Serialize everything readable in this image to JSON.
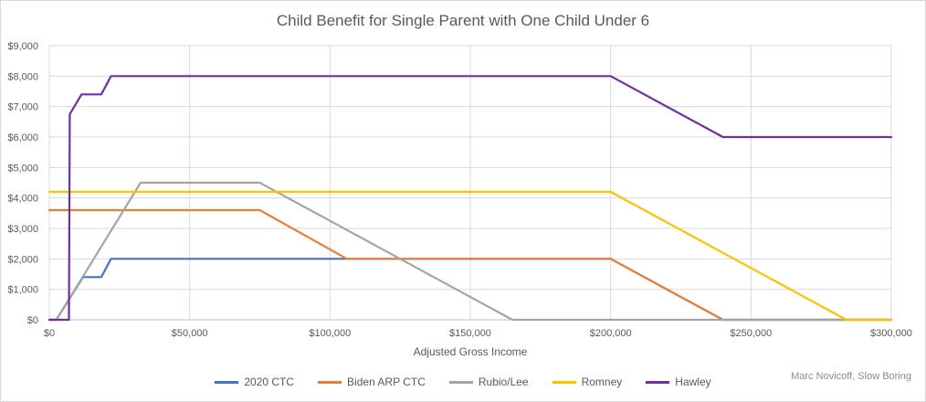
{
  "chart_data": {
    "type": "line",
    "title": "Child Benefit for Single Parent with One Child Under 6",
    "xlabel": "Adjusted Gross Income",
    "ylabel": "",
    "xlim": [
      0,
      300000
    ],
    "ylim": [
      0,
      9000
    ],
    "x_ticks": [
      0,
      50000,
      100000,
      150000,
      200000,
      250000,
      300000
    ],
    "x_tick_labels": [
      "$0",
      "$50,000",
      "$100,000",
      "$150,000",
      "$200,000",
      "$250,000",
      "$300,000"
    ],
    "y_ticks": [
      0,
      1000,
      2000,
      3000,
      4000,
      5000,
      6000,
      7000,
      8000,
      9000
    ],
    "y_tick_labels": [
      "$0",
      "$1,000",
      "$2,000",
      "$3,000",
      "$4,000",
      "$5,000",
      "$6,000",
      "$7,000",
      "$8,000",
      "$9,000"
    ],
    "grid": true,
    "legend_position": "bottom",
    "series": [
      {
        "name": "2020 CTC",
        "color": "#4472c4",
        "points": [
          [
            0,
            0
          ],
          [
            2500,
            0
          ],
          [
            12000,
            1400
          ],
          [
            18500,
            1400
          ],
          [
            22000,
            2000
          ],
          [
            200000,
            2000
          ],
          [
            240000,
            0
          ],
          [
            300000,
            0
          ]
        ]
      },
      {
        "name": "Biden ARP CTC",
        "color": "#ed7d31",
        "points": [
          [
            0,
            3600
          ],
          [
            75000,
            3600
          ],
          [
            106000,
            2000
          ],
          [
            200000,
            2000
          ],
          [
            240000,
            0
          ],
          [
            300000,
            0
          ]
        ]
      },
      {
        "name": "Rubio/Lee",
        "color": "#a5a5a5",
        "points": [
          [
            0,
            0
          ],
          [
            2500,
            0
          ],
          [
            32500,
            4500
          ],
          [
            75000,
            4500
          ],
          [
            165000,
            0
          ],
          [
            300000,
            0
          ]
        ]
      },
      {
        "name": "Romney",
        "color": "#ffc000",
        "points": [
          [
            0,
            4200
          ],
          [
            200000,
            4200
          ],
          [
            284000,
            0
          ],
          [
            300000,
            0
          ]
        ]
      },
      {
        "name": "Hawley",
        "color": "#7030a0",
        "points": [
          [
            0,
            0
          ],
          [
            7000,
            0
          ],
          [
            7300,
            6750
          ],
          [
            11500,
            7400
          ],
          [
            18500,
            7400
          ],
          [
            22000,
            8000
          ],
          [
            200000,
            8000
          ],
          [
            240000,
            6000
          ],
          [
            300000,
            6000
          ]
        ]
      }
    ]
  },
  "credit": "Marc Novicoff, Slow Boring"
}
